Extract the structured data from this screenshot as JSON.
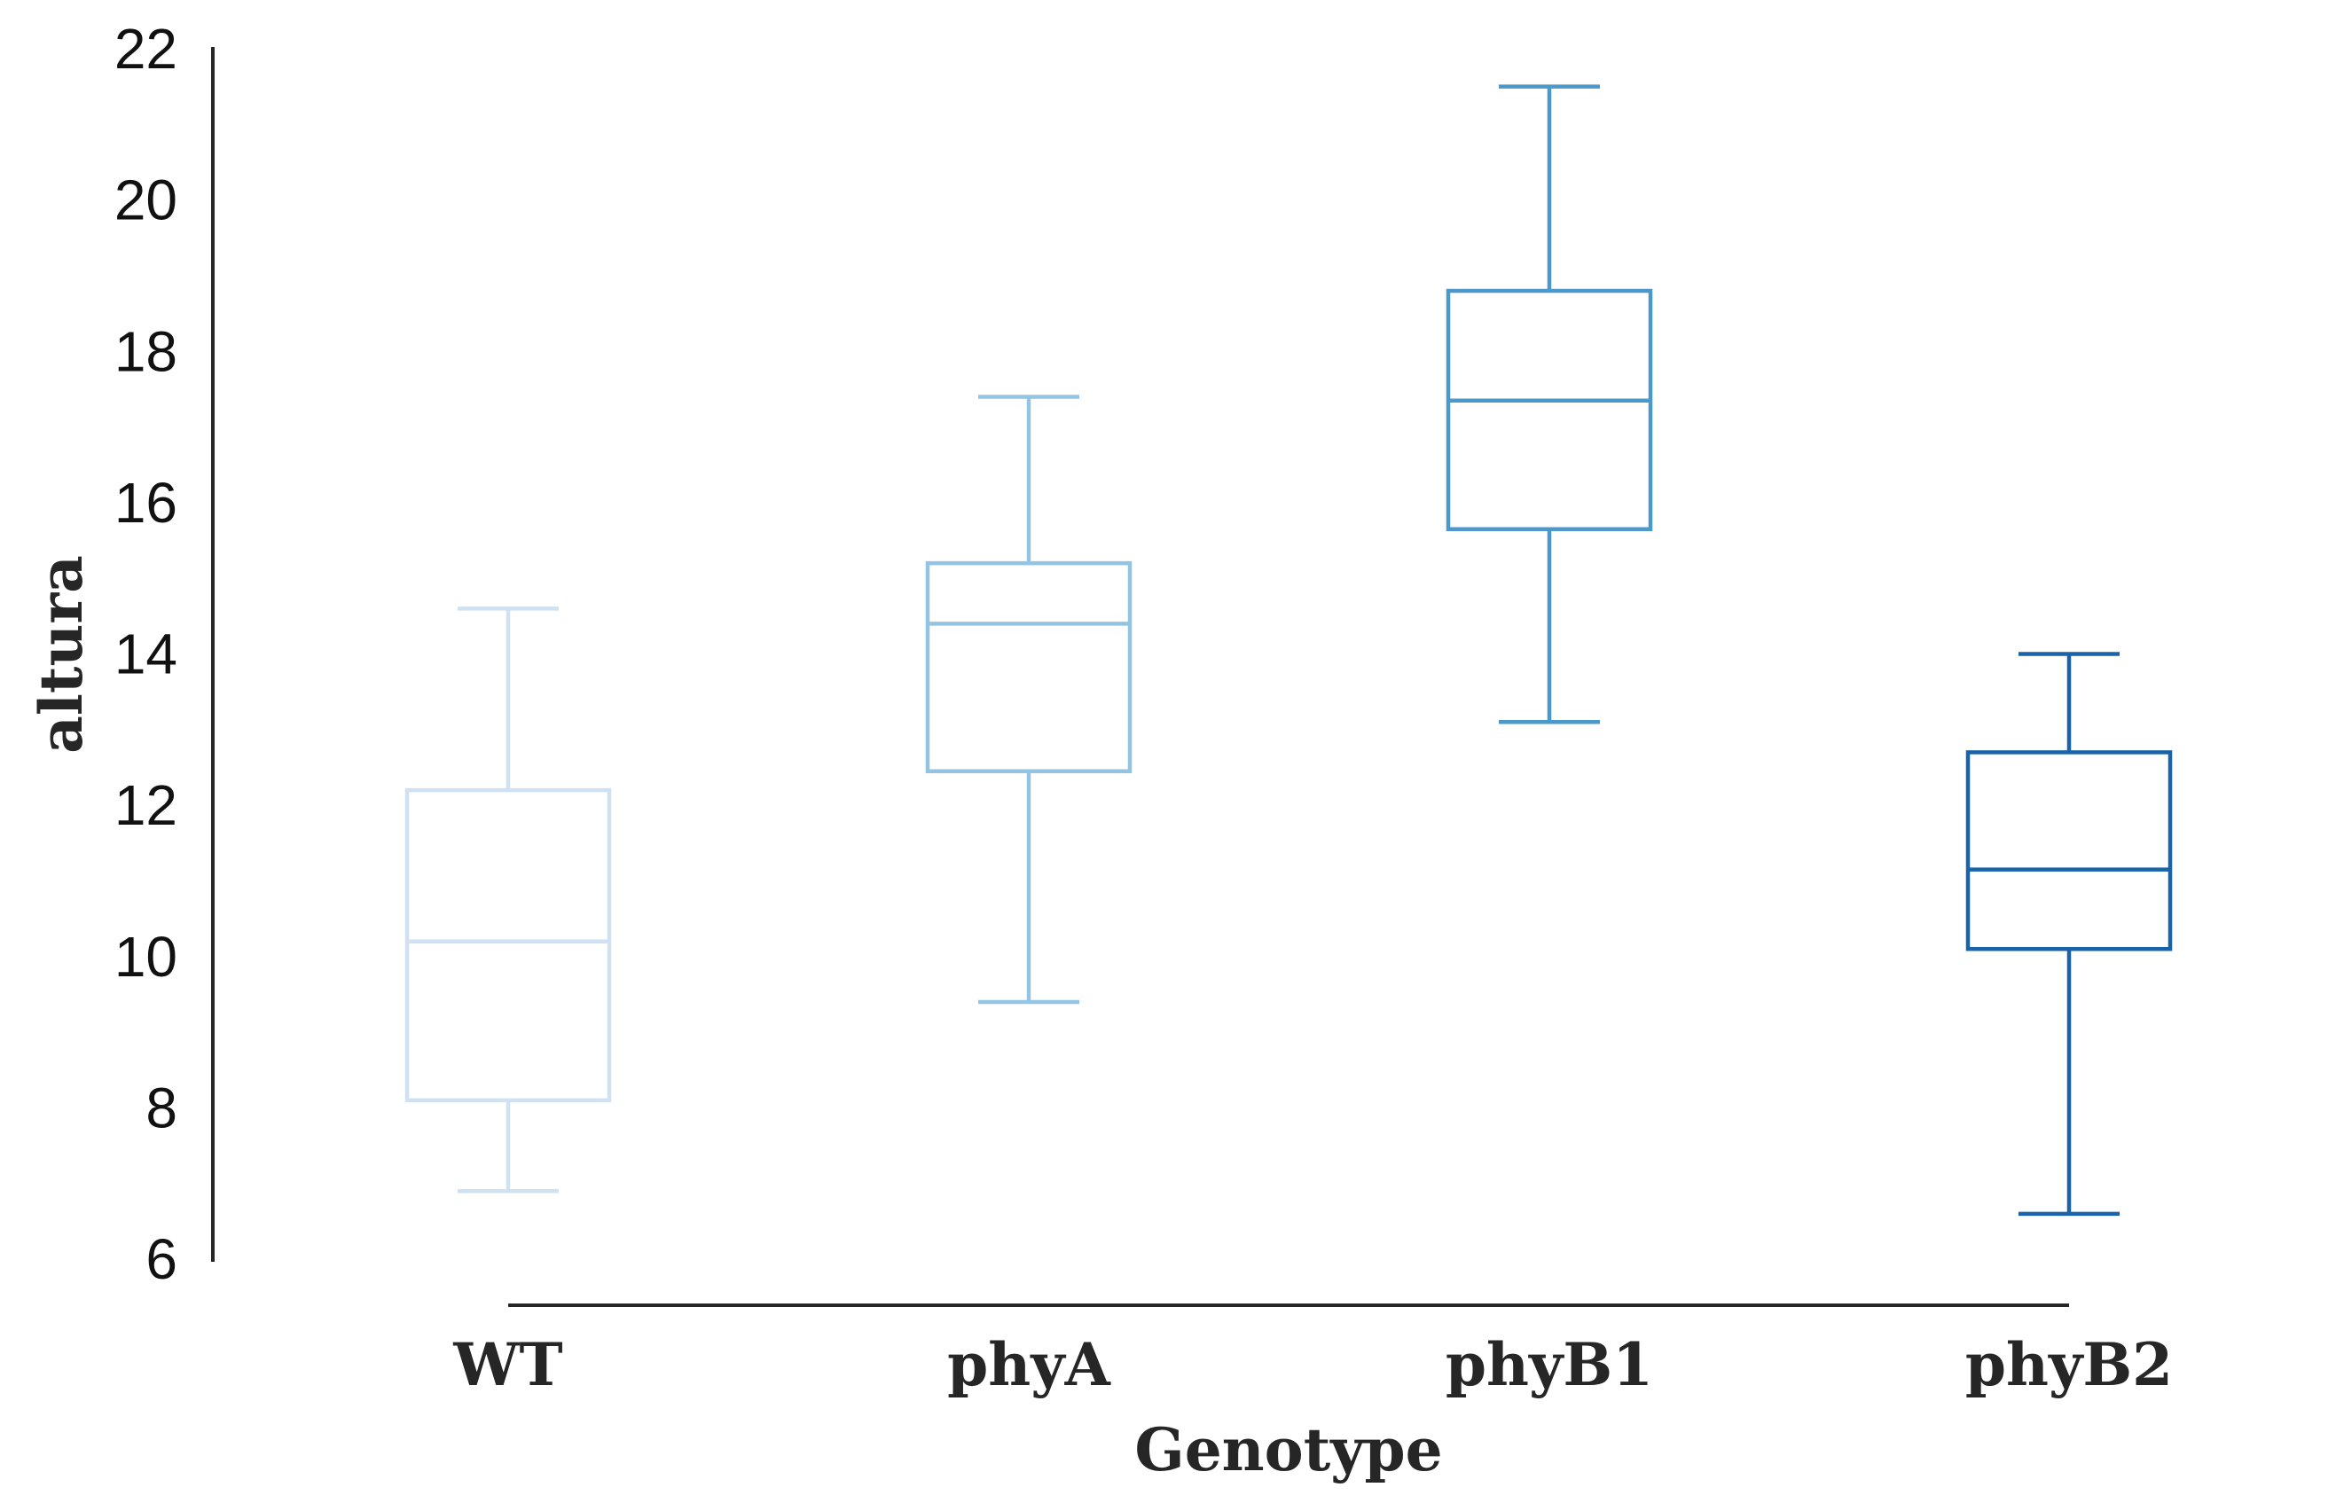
{
  "chart_data": {
    "type": "boxplot",
    "xlabel": "Genotype",
    "ylabel": "altura",
    "ylim": [
      6,
      22
    ],
    "yticks": [
      "6",
      "8",
      "10",
      "12",
      "14",
      "16",
      "18",
      "20",
      "22"
    ],
    "grid": false,
    "legend": "none",
    "categories": [
      "WT",
      "phyA",
      "phyB1",
      "phyB2"
    ],
    "boxes": [
      {
        "category": "WT",
        "whisker_low": 6.9,
        "q1": 8.1,
        "median": 10.2,
        "q3": 12.2,
        "whisker_high": 14.6,
        "color": "#cfe1f2"
      },
      {
        "category": "phyA",
        "whisker_low": 9.4,
        "q1": 12.45,
        "median": 14.4,
        "q3": 15.2,
        "whisker_high": 17.4,
        "color": "#93c4e1"
      },
      {
        "category": "phyB1",
        "whisker_low": 13.1,
        "q1": 15.65,
        "median": 17.35,
        "q3": 18.8,
        "whisker_high": 21.5,
        "color": "#4b98ca"
      },
      {
        "category": "phyB2",
        "whisker_low": 6.6,
        "q1": 10.1,
        "median": 11.15,
        "q3": 12.7,
        "whisker_high": 14.0,
        "color": "#1a62a9"
      }
    ]
  }
}
